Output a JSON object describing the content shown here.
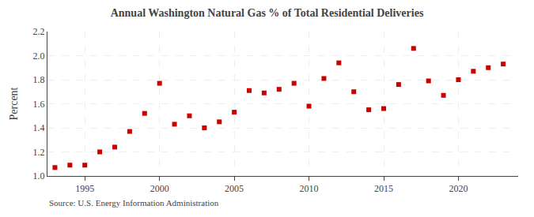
{
  "chart_data": {
    "type": "scatter",
    "title": "Annual Washington Natural Gas % of Total Residential Deliveries",
    "ylabel": "Percent",
    "annotations": [
      "Source: U.S. Energy Information Administration"
    ],
    "x": [
      1993,
      1994,
      1995,
      1996,
      1997,
      1998,
      1999,
      2000,
      2001,
      2002,
      2003,
      2004,
      2005,
      2006,
      2007,
      2008,
      2009,
      2010,
      2011,
      2012,
      2013,
      2014,
      2015,
      2016,
      2017,
      2018,
      2019,
      2020,
      2021,
      2022,
      2023
    ],
    "values": [
      1.07,
      1.09,
      1.09,
      1.2,
      1.24,
      1.37,
      1.52,
      1.77,
      1.43,
      1.5,
      1.4,
      1.45,
      1.53,
      1.71,
      1.69,
      1.72,
      1.77,
      1.58,
      1.81,
      1.94,
      1.7,
      1.55,
      1.56,
      1.76,
      2.06,
      1.79,
      1.67,
      1.8,
      1.87,
      1.9,
      1.93
    ],
    "color": "#cc0000",
    "marker": "square",
    "xlim": [
      1992.5,
      2024
    ],
    "xticks": [
      1995,
      2000,
      2005,
      2010,
      2015,
      2020
    ],
    "ylim": [
      1.0,
      2.2
    ],
    "yticks": [
      {
        "value": 1.0,
        "label": "1.0"
      },
      1.2,
      1.4,
      1.6,
      1.8,
      {
        "value": 2.0,
        "label": "2.0"
      },
      2.2
    ],
    "grid": true
  }
}
